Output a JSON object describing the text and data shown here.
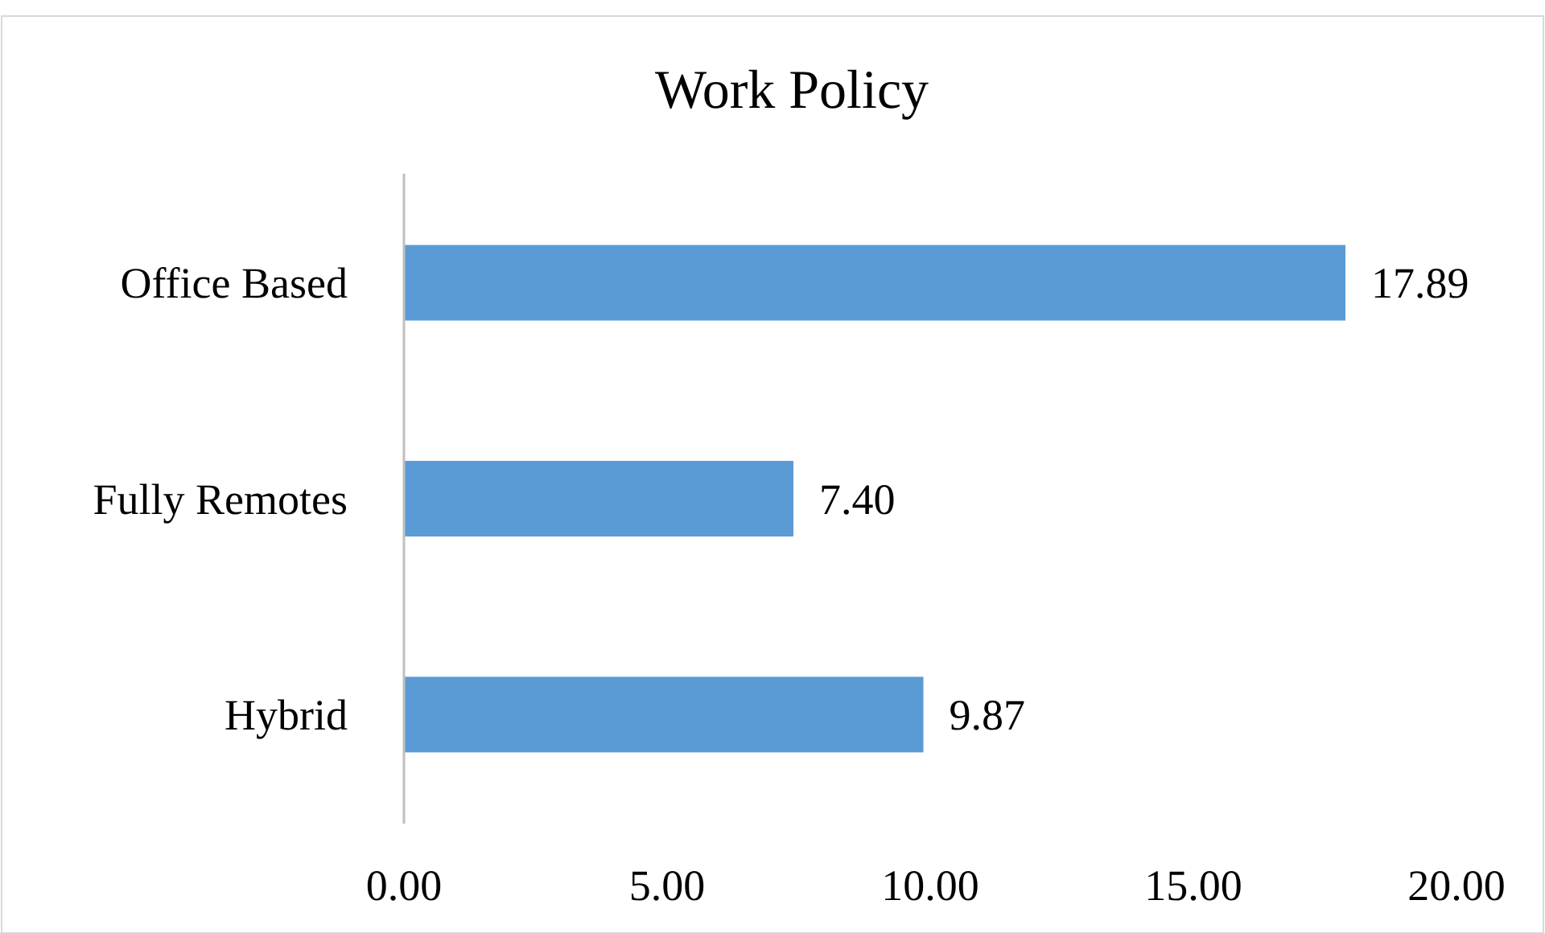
{
  "chart_data": {
    "type": "bar",
    "title": "Work Policy",
    "orientation": "horizontal",
    "categories": [
      "Office Based",
      "Fully Remotes",
      "Hybrid"
    ],
    "values": [
      17.89,
      7.4,
      9.87
    ],
    "color": "#5b9bd5",
    "value_labels": [
      "17.89",
      "7.40",
      "9.87"
    ],
    "xlim": [
      0,
      20
    ],
    "xticks": [
      {
        "value": 0,
        "label": "0.00"
      },
      {
        "value": 5,
        "label": "5.00"
      },
      {
        "value": 10,
        "label": "10.00"
      },
      {
        "value": 15,
        "label": "15.00"
      },
      {
        "value": 20,
        "label": "20.00"
      }
    ],
    "grid": false
  }
}
